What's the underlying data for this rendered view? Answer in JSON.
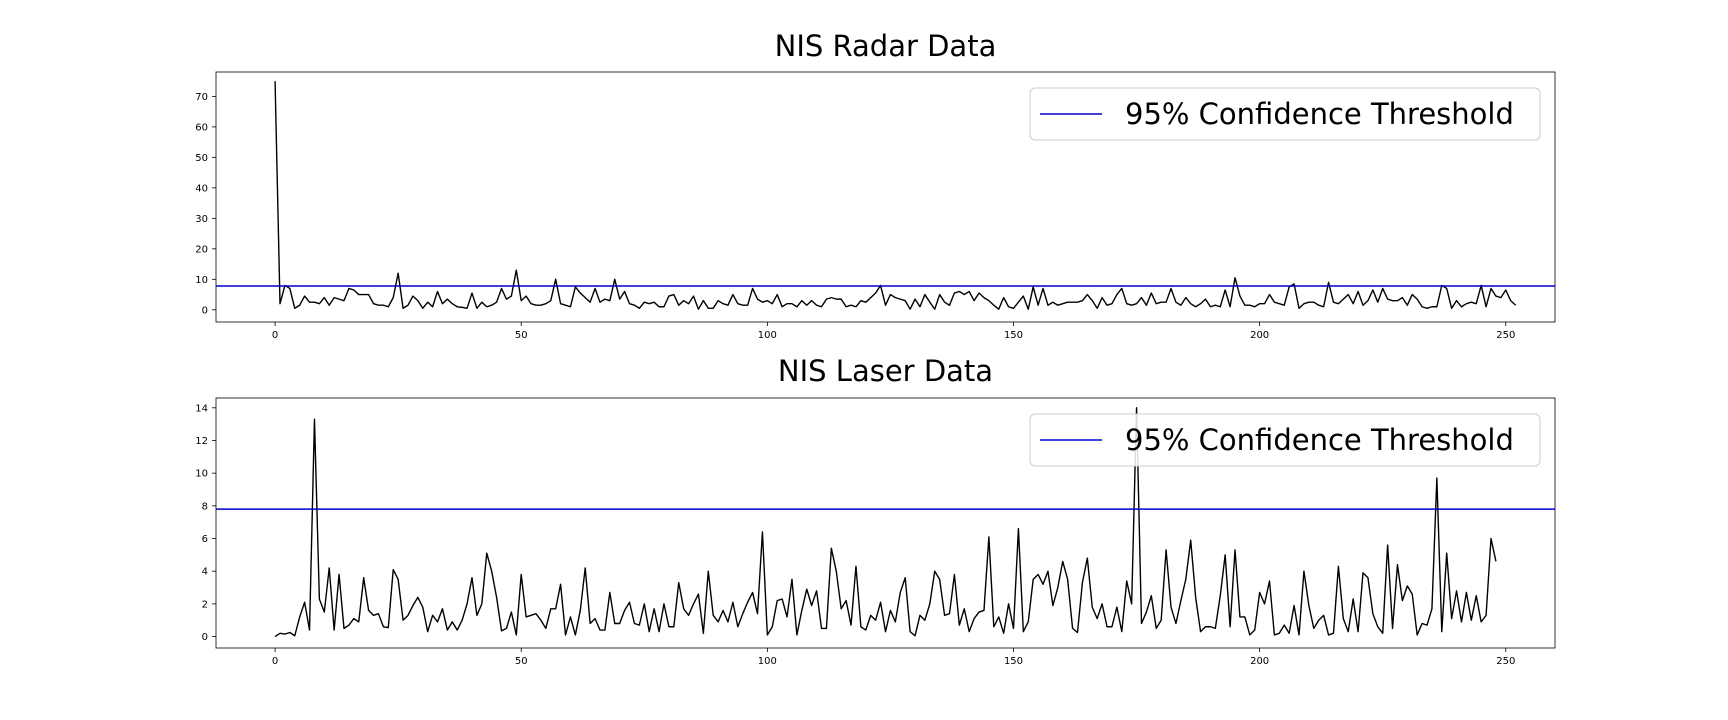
{
  "chart_data": [
    {
      "type": "line",
      "title": "NIS Radar Data",
      "xlabel": "",
      "ylabel": "",
      "xlim": [
        -12,
        260
      ],
      "ylim": [
        -4,
        78
      ],
      "xticks": [
        0,
        50,
        100,
        150,
        200,
        250
      ],
      "yticks": [
        0,
        10,
        20,
        30,
        40,
        50,
        60,
        70
      ],
      "grid": false,
      "legend_position": "top-right",
      "threshold": {
        "name": "95% Confidence Threshold",
        "value": 7.8,
        "color": "#0000cc"
      },
      "series_color": "#000000",
      "series": [
        {
          "values": [
            75,
            2,
            8,
            7,
            0.5,
            1.5,
            4.5,
            2.5,
            2.5,
            2,
            4,
            1.5,
            4,
            3.5,
            3,
            7,
            6.5,
            5,
            5,
            5,
            2,
            1.5,
            1.5,
            1,
            4,
            12,
            0.5,
            1.5,
            4.5,
            3,
            0.5,
            2.5,
            1,
            6,
            2,
            3.5,
            2,
            1,
            0.8,
            0.5,
            5.5,
            0.5,
            2.5,
            1,
            1.5,
            2.5,
            7,
            3.5,
            4.5,
            13,
            3,
            4.5,
            2,
            1.5,
            1.5,
            2,
            3,
            10,
            2,
            1.5,
            1,
            7.5,
            5.5,
            4,
            2.5,
            7,
            2.5,
            3.5,
            3,
            10,
            3.5,
            6,
            2,
            1.5,
            0.5,
            2.5,
            2,
            2.5,
            1,
            1,
            4.5,
            5,
            1.5,
            3,
            2,
            4.5,
            0.2,
            3,
            0.5,
            0.5,
            3,
            2,
            1.5,
            5,
            2,
            1.5,
            1.5,
            7,
            3.5,
            2.5,
            3,
            2,
            5,
            1,
            2,
            2,
            1,
            3,
            1.5,
            3,
            1.5,
            1,
            3.5,
            4,
            3.5,
            3.5,
            1,
            1.5,
            1,
            3,
            2.5,
            4,
            5.5,
            8,
            1.5,
            5,
            4,
            3.5,
            3,
            0.2,
            3.5,
            1,
            5,
            2.5,
            0.2,
            5,
            2.5,
            1.5,
            5.5,
            6,
            5,
            6,
            3,
            5.5,
            4,
            3,
            1.5,
            0.2,
            4,
            1,
            0.5,
            2.5,
            4.5,
            0.2,
            7.5,
            1.5,
            7,
            1.5,
            2.5,
            1.5,
            2,
            2.5,
            2.5,
            2.5,
            3,
            5,
            3,
            0.5,
            4,
            1.5,
            2,
            5,
            7,
            2,
            1.5,
            2,
            4,
            1.5,
            5.5,
            2,
            2.5,
            2.5,
            7,
            2.5,
            1.5,
            4,
            2,
            1,
            2,
            3.5,
            1,
            1.5,
            1,
            6.5,
            1,
            10.5,
            4.5,
            1.5,
            1.5,
            1,
            2,
            2,
            5,
            2.5,
            2,
            1.5,
            7.5,
            8.5,
            0.5,
            2,
            2.5,
            2.5,
            1.5,
            1,
            9,
            2.5,
            2,
            3.5,
            5,
            2,
            6,
            1.5,
            3,
            6.5,
            2.5,
            7,
            3.5,
            3,
            3,
            4,
            1.5,
            5,
            3.5,
            1,
            0.5,
            1,
            1,
            8,
            7,
            0.5,
            3,
            1,
            2,
            2.5,
            2,
            8,
            1,
            7,
            4.5,
            4,
            6.5,
            3,
            1.5
          ]
        }
      ]
    },
    {
      "type": "line",
      "title": "NIS Laser Data",
      "xlabel": "",
      "ylabel": "",
      "xlim": [
        -12,
        260
      ],
      "ylim": [
        -0.7,
        14.6
      ],
      "xticks": [
        0,
        50,
        100,
        150,
        200,
        250
      ],
      "yticks": [
        0,
        2,
        4,
        6,
        8,
        10,
        12,
        14
      ],
      "grid": false,
      "legend_position": "top-right",
      "threshold": {
        "name": "95% Confidence Threshold",
        "value": 7.8,
        "color": "#0000cc"
      },
      "series_color": "#000000",
      "series": [
        {
          "values": [
            0,
            0.2,
            0.15,
            0.25,
            0.05,
            1.2,
            2.1,
            0.4,
            13.3,
            2.3,
            1.5,
            4.2,
            0.4,
            3.8,
            0.5,
            0.7,
            1.1,
            0.9,
            3.6,
            1.6,
            1.3,
            1.4,
            0.6,
            0.55,
            4.1,
            3.5,
            1.0,
            1.3,
            1.9,
            2.4,
            1.8,
            0.3,
            1.3,
            0.9,
            1.7,
            0.4,
            0.9,
            0.4,
            1.0,
            2.0,
            3.6,
            1.3,
            2.0,
            5.1,
            4.0,
            2.4,
            0.35,
            0.5,
            1.5,
            0.1,
            3.8,
            1.2,
            1.3,
            1.4,
            1.0,
            0.5,
            1.7,
            1.7,
            3.2,
            0.1,
            1.2,
            0.1,
            1.6,
            4.2,
            0.8,
            1.1,
            0.4,
            0.4,
            2.7,
            0.8,
            0.8,
            1.6,
            2.1,
            0.8,
            0.7,
            2.0,
            0.3,
            1.7,
            0.3,
            2.0,
            0.6,
            0.6,
            3.3,
            1.7,
            1.3,
            2.0,
            2.6,
            0.2,
            4.0,
            1.3,
            0.9,
            1.6,
            0.9,
            2.1,
            0.6,
            1.4,
            2.1,
            2.7,
            1.4,
            6.4,
            0.1,
            0.6,
            2.2,
            2.3,
            1.2,
            3.5,
            0.1,
            1.6,
            2.9,
            1.9,
            2.8,
            0.5,
            0.5,
            5.4,
            4.0,
            1.7,
            2.2,
            0.7,
            4.3,
            0.6,
            0.4,
            1.3,
            1.0,
            2.1,
            0.3,
            1.6,
            0.9,
            2.7,
            3.6,
            0.3,
            0.05,
            1.3,
            1.0,
            2.0,
            4.0,
            3.5,
            1.3,
            1.4,
            3.8,
            0.7,
            1.7,
            0.3,
            1.1,
            1.5,
            1.6,
            6.1,
            0.6,
            1.2,
            0.2,
            2.0,
            0.5,
            6.6,
            0.3,
            0.9,
            3.5,
            3.8,
            3.2,
            4.0,
            1.9,
            3.0,
            4.6,
            3.5,
            0.5,
            0.25,
            3.3,
            4.8,
            1.8,
            1.1,
            2.0,
            0.6,
            0.6,
            1.8,
            0.3,
            3.4,
            2.0,
            14.0,
            0.8,
            1.5,
            2.5,
            0.5,
            1.0,
            5.3,
            1.8,
            0.8,
            2.2,
            3.5,
            5.9,
            2.4,
            0.3,
            0.6,
            0.6,
            0.5,
            2.5,
            5.0,
            0.6,
            5.3,
            1.2,
            1.2,
            0.1,
            0.4,
            2.7,
            2.0,
            3.4,
            0.1,
            0.2,
            0.7,
            0.2,
            1.9,
            0.1,
            4.0,
            1.9,
            0.5,
            1.0,
            1.3,
            0.1,
            0.2,
            4.3,
            1.1,
            0.3,
            2.3,
            0.3,
            3.9,
            3.6,
            1.4,
            0.6,
            0.2,
            5.6,
            0.5,
            4.4,
            2.2,
            3.1,
            2.6,
            0.1,
            0.8,
            0.7,
            1.7,
            9.7,
            0.3,
            5.1,
            1.1,
            2.8,
            0.9,
            2.7,
            1.0,
            2.5,
            0.9,
            1.3,
            6.0,
            4.6
          ]
        }
      ]
    }
  ]
}
